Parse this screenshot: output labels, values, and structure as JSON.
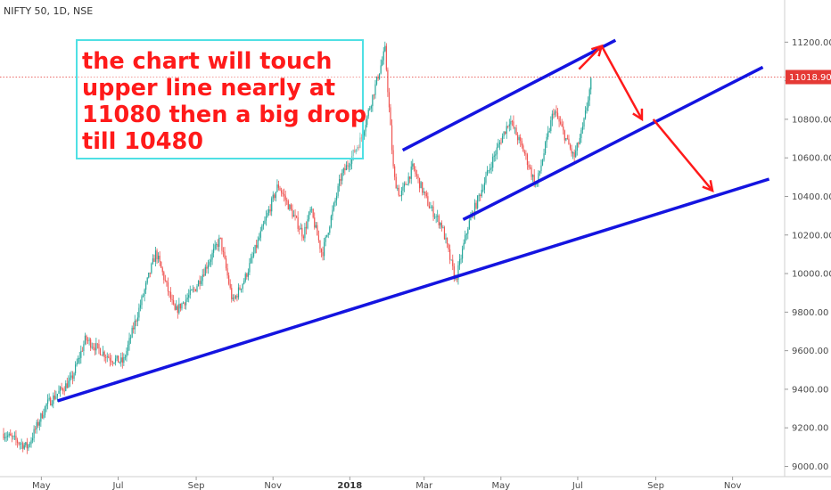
{
  "symbol_label": "NIFTY 50, 1D, NSE",
  "annotation_lines": [
    "the chart will touch",
    "upper line nearly at",
    "11080 then a big drop",
    "till 10480"
  ],
  "colors": {
    "up": "#26a69a",
    "down": "#ef5350",
    "trendline": "#1414e0",
    "arrow": "#ff1a1a",
    "note_border": "#4fe0e4",
    "price_tag": "#e53935"
  },
  "chart_data": {
    "type": "candlestick",
    "title": "NIFTY 50, 1D, NSE",
    "ylim": [
      8970,
      11280
    ],
    "y_ticks": [
      9000,
      9200,
      9400,
      9600,
      9800,
      10000,
      10200,
      10400,
      10600,
      10800,
      11000,
      11200
    ],
    "y_tick_labels": [
      "9000.00",
      "9200.00",
      "9400.00",
      "9600.00",
      "9800.00",
      "10000.00",
      "10200.00",
      "10400.00",
      "10600.00",
      "10800.00",
      "11000.00",
      "11200.00"
    ],
    "x_ticks": [
      "May",
      "Jul",
      "Sep",
      "Nov",
      "2018",
      "Mar",
      "May",
      "Jul",
      "Sep",
      "Nov"
    ],
    "last_price": 11018.9,
    "last_price_label": "11018.90",
    "price_path": [
      [
        "2017-04-01",
        9170
      ],
      [
        "2017-04-20",
        9100
      ],
      [
        "2017-05-05",
        9320
      ],
      [
        "2017-05-25",
        9450
      ],
      [
        "2017-06-05",
        9660
      ],
      [
        "2017-06-25",
        9560
      ],
      [
        "2017-07-05",
        9540
      ],
      [
        "2017-07-31",
        10110
      ],
      [
        "2017-08-15",
        9800
      ],
      [
        "2017-08-31",
        9920
      ],
      [
        "2017-09-20",
        10180
      ],
      [
        "2017-09-30",
        9850
      ],
      [
        "2017-10-10",
        9980
      ],
      [
        "2017-11-05",
        10460
      ],
      [
        "2017-11-25",
        10200
      ],
      [
        "2017-12-01",
        10330
      ],
      [
        "2017-12-10",
        10100
      ],
      [
        "2017-12-25",
        10500
      ],
      [
        "2018-01-10",
        10700
      ],
      [
        "2018-01-29",
        11160
      ],
      [
        "2018-02-05",
        10500
      ],
      [
        "2018-02-10",
        10400
      ],
      [
        "2018-02-20",
        10550
      ],
      [
        "2018-03-05",
        10350
      ],
      [
        "2018-03-15",
        10250
      ],
      [
        "2018-03-26",
        9960
      ],
      [
        "2018-04-05",
        10250
      ],
      [
        "2018-04-25",
        10600
      ],
      [
        "2018-05-08",
        10800
      ],
      [
        "2018-05-20",
        10620
      ],
      [
        "2018-05-29",
        10450
      ],
      [
        "2018-06-12",
        10850
      ],
      [
        "2018-06-28",
        10600
      ],
      [
        "2018-07-05",
        10750
      ],
      [
        "2018-07-12",
        11010
      ]
    ],
    "trendlines": [
      {
        "from": [
          "2017-05-14",
          9340
        ],
        "to": [
          "2018-11-30",
          10490
        ]
      },
      {
        "from": [
          "2018-02-12",
          10640
        ],
        "to": [
          "2018-07-31",
          11210
        ]
      },
      {
        "from": [
          "2018-04-01",
          10280
        ],
        "to": [
          "2018-11-25",
          11070
        ]
      }
    ],
    "arrows": [
      {
        "from": [
          "2018-07-02",
          11060
        ],
        "to": [
          "2018-07-20",
          11180
        ]
      },
      {
        "from": [
          "2018-07-20",
          11180
        ],
        "to": [
          "2018-08-21",
          10800
        ]
      },
      {
        "from": [
          "2018-08-30",
          10800
        ],
        "to": [
          "2018-10-16",
          10430
        ]
      }
    ],
    "grid": false,
    "legend": "none"
  }
}
